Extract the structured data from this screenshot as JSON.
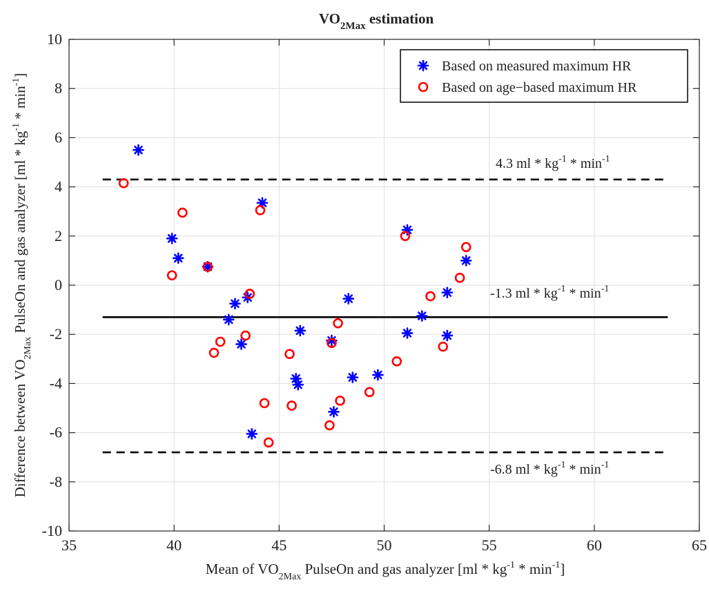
{
  "chart_data": {
    "type": "scatter",
    "title": {
      "main": "VO",
      "sub": "2Max",
      "rest": " estimation"
    },
    "xlabel": {
      "pre": "Mean of VO",
      "sub": "2Max",
      "mid": " PulseOn and gas analyzer [ml * kg",
      "sup1": "-1",
      "mid2": " * min",
      "sup2": "-1",
      "post": "]"
    },
    "ylabel": {
      "pre": "Difference between VO",
      "sub": "2Max",
      "mid": " PulseOn and gas analyzer [ml * kg",
      "sup1": "-1",
      "mid2": " * min",
      "sup2": "-1",
      "post": "]"
    },
    "xlim": [
      35,
      65
    ],
    "ylim": [
      -10,
      10
    ],
    "xticks": [
      "35",
      "40",
      "45",
      "50",
      "55",
      "60",
      "65"
    ],
    "yticks": [
      "10",
      "8",
      "6",
      "4",
      "2",
      "0",
      "-2",
      "-4",
      "-6",
      "-8",
      "-10"
    ],
    "grid": true,
    "legend_position": "top-right",
    "series": [
      {
        "name": "Based on measured maximum HR",
        "marker": "asterisk",
        "color": "#0000ff",
        "points": [
          {
            "x": 38.3,
            "y": 5.5
          },
          {
            "x": 39.9,
            "y": 1.9
          },
          {
            "x": 40.2,
            "y": 1.1
          },
          {
            "x": 41.6,
            "y": 0.75
          },
          {
            "x": 42.6,
            "y": -1.4
          },
          {
            "x": 42.9,
            "y": -0.75
          },
          {
            "x": 43.2,
            "y": -2.4
          },
          {
            "x": 43.5,
            "y": -0.5
          },
          {
            "x": 43.7,
            "y": -6.05
          },
          {
            "x": 44.2,
            "y": 3.35
          },
          {
            "x": 45.8,
            "y": -3.8
          },
          {
            "x": 45.9,
            "y": -4.05
          },
          {
            "x": 46.0,
            "y": -1.85
          },
          {
            "x": 47.5,
            "y": -2.25
          },
          {
            "x": 47.6,
            "y": -5.15
          },
          {
            "x": 48.3,
            "y": -0.55
          },
          {
            "x": 48.5,
            "y": -3.75
          },
          {
            "x": 49.7,
            "y": -3.65
          },
          {
            "x": 51.1,
            "y": 2.25
          },
          {
            "x": 51.1,
            "y": -1.95
          },
          {
            "x": 51.8,
            "y": -1.25
          },
          {
            "x": 53.0,
            "y": -0.3
          },
          {
            "x": 53.0,
            "y": -2.05
          },
          {
            "x": 53.9,
            "y": 1.0
          }
        ]
      },
      {
        "name": "Based on age−based maximum HR",
        "marker": "circle",
        "color": "#ff0000",
        "points": [
          {
            "x": 37.6,
            "y": 4.15
          },
          {
            "x": 39.9,
            "y": 0.4
          },
          {
            "x": 40.4,
            "y": 2.95
          },
          {
            "x": 41.6,
            "y": 0.75
          },
          {
            "x": 41.9,
            "y": -2.75
          },
          {
            "x": 42.2,
            "y": -2.3
          },
          {
            "x": 43.4,
            "y": -2.05
          },
          {
            "x": 43.6,
            "y": -0.35
          },
          {
            "x": 44.1,
            "y": 3.05
          },
          {
            "x": 44.3,
            "y": -4.8
          },
          {
            "x": 44.5,
            "y": -6.4
          },
          {
            "x": 45.5,
            "y": -2.8
          },
          {
            "x": 45.6,
            "y": -4.9
          },
          {
            "x": 47.4,
            "y": -5.7
          },
          {
            "x": 47.5,
            "y": -2.35
          },
          {
            "x": 47.8,
            "y": -1.55
          },
          {
            "x": 47.9,
            "y": -4.7
          },
          {
            "x": 49.3,
            "y": -4.35
          },
          {
            "x": 50.6,
            "y": -3.1
          },
          {
            "x": 51.0,
            "y": 2.0
          },
          {
            "x": 52.2,
            "y": -0.45
          },
          {
            "x": 52.8,
            "y": -2.5
          },
          {
            "x": 53.6,
            "y": 0.3
          },
          {
            "x": 53.9,
            "y": 1.55
          }
        ]
      }
    ],
    "reference_lines": [
      {
        "y": 4.3,
        "style": "dashed",
        "x_range": [
          36.6,
          63.5
        ],
        "label": {
          "text": "4.3 ml * kg",
          "sup1": "-1",
          "mid": " * min",
          "sup2": "-1"
        }
      },
      {
        "y": -1.3,
        "style": "solid",
        "x_range": [
          36.6,
          63.5
        ],
        "label": {
          "text": "-1.3 ml * kg",
          "sup1": "-1",
          "mid": " * min",
          "sup2": "-1"
        }
      },
      {
        "y": -6.8,
        "style": "dashed",
        "x_range": [
          36.6,
          63.5
        ],
        "label": {
          "text": "-6.8 ml * kg",
          "sup1": "-1",
          "mid": " * min",
          "sup2": "-1"
        }
      }
    ]
  },
  "colors": {
    "grid": "#e3e3e3",
    "axis": "#262626",
    "reference_line": "#000000"
  }
}
